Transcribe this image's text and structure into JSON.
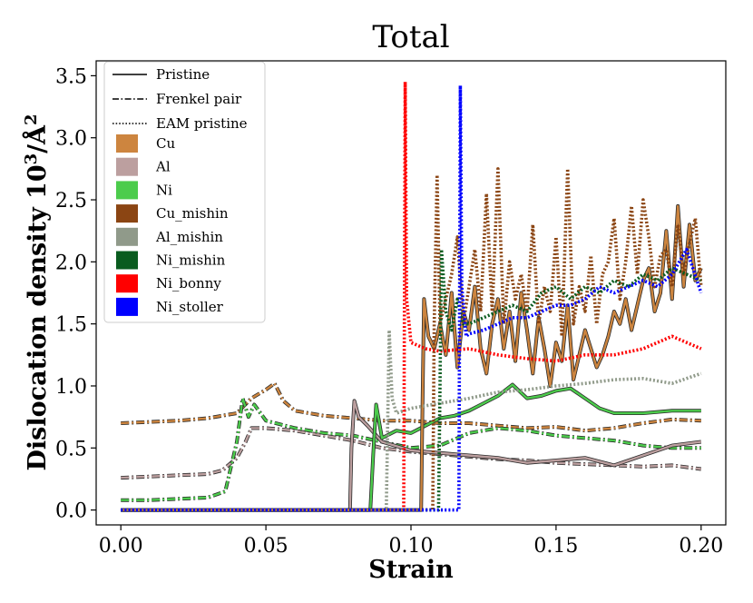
{
  "chart_data": {
    "type": "line",
    "title": "Total",
    "xlabel": "Strain",
    "ylabel": "Dislocation density 10³/Å²",
    "ylabel_main": "Dislocation density 10",
    "ylabel_sup": "3",
    "ylabel_unit": "/Å",
    "ylabel_unit_sup": "2",
    "xlim": [
      -0.0085,
      0.2085
    ],
    "ylim": [
      -0.12,
      3.62
    ],
    "x_ticks": [
      "0.00",
      "0.05",
      "0.10",
      "0.15",
      "0.20"
    ],
    "x_tick_values": [
      0.0,
      0.05,
      0.1,
      0.15,
      0.2
    ],
    "y_ticks": [
      "0.0",
      "0.5",
      "1.0",
      "1.5",
      "2.0",
      "2.5",
      "3.0",
      "3.5"
    ],
    "y_tick_values": [
      0.0,
      0.5,
      1.0,
      1.5,
      2.0,
      2.5,
      3.0,
      3.5
    ],
    "legend_position": "top-left",
    "legend": {
      "line_styles": [
        {
          "label": "Pristine",
          "dash": "solid"
        },
        {
          "label": "Frenkel pair",
          "dash": "dashdot"
        },
        {
          "label": "EAM pristine",
          "dash": "dotted"
        }
      ],
      "materials": [
        {
          "label": "Cu",
          "color": "#cd853f"
        },
        {
          "label": "Al",
          "color": "#bc9f9f"
        },
        {
          "label": "Ni",
          "color": "#4ccc4c"
        },
        {
          "label": "Cu_mishin",
          "color": "#8b4513"
        },
        {
          "label": "Al_mishin",
          "color": "#909a8a"
        },
        {
          "label": "Ni_mishin",
          "color": "#0a5c1f"
        },
        {
          "label": "Ni_bonny",
          "color": "#ff0000"
        },
        {
          "label": "Ni_stoller",
          "color": "#0000ff"
        }
      ]
    },
    "series": [
      {
        "name": "Cu Frenkel pair",
        "color": "#cd853f",
        "dash": "dashdot",
        "outline": true,
        "x": [
          0.0,
          0.01,
          0.02,
          0.03,
          0.04,
          0.045,
          0.05,
          0.053,
          0.056,
          0.06,
          0.07,
          0.08,
          0.09,
          0.1,
          0.11,
          0.12,
          0.13,
          0.14,
          0.15,
          0.16,
          0.17,
          0.18,
          0.19,
          0.2
        ],
        "y": [
          0.7,
          0.71,
          0.72,
          0.74,
          0.78,
          0.9,
          0.97,
          1.02,
          0.88,
          0.8,
          0.76,
          0.74,
          0.72,
          0.72,
          0.7,
          0.7,
          0.68,
          0.66,
          0.67,
          0.64,
          0.66,
          0.7,
          0.73,
          0.72
        ]
      },
      {
        "name": "Al Frenkel pair",
        "color": "#bc9f9f",
        "dash": "dashdot",
        "outline": true,
        "x": [
          0.0,
          0.01,
          0.02,
          0.03,
          0.035,
          0.04,
          0.043,
          0.045,
          0.05,
          0.06,
          0.07,
          0.08,
          0.09,
          0.1,
          0.11,
          0.12,
          0.13,
          0.14,
          0.15,
          0.16,
          0.17,
          0.18,
          0.19,
          0.2
        ],
        "y": [
          0.26,
          0.27,
          0.28,
          0.29,
          0.32,
          0.42,
          0.55,
          0.66,
          0.66,
          0.64,
          0.6,
          0.56,
          0.5,
          0.47,
          0.45,
          0.43,
          0.41,
          0.4,
          0.38,
          0.37,
          0.36,
          0.35,
          0.36,
          0.33
        ]
      },
      {
        "name": "Ni Frenkel pair",
        "color": "#4ccc4c",
        "dash": "dashdot",
        "outline": true,
        "x": [
          0.0,
          0.01,
          0.02,
          0.03,
          0.036,
          0.04,
          0.042,
          0.044,
          0.046,
          0.05,
          0.06,
          0.07,
          0.08,
          0.09,
          0.1,
          0.11,
          0.12,
          0.13,
          0.14,
          0.15,
          0.16,
          0.17,
          0.18,
          0.19,
          0.2
        ],
        "y": [
          0.08,
          0.08,
          0.09,
          0.1,
          0.15,
          0.55,
          0.9,
          0.75,
          0.85,
          0.72,
          0.66,
          0.62,
          0.6,
          0.55,
          0.5,
          0.52,
          0.62,
          0.66,
          0.64,
          0.6,
          0.58,
          0.56,
          0.52,
          0.5,
          0.5
        ]
      },
      {
        "name": "Al Pristine",
        "color": "#bc9f9f",
        "dash": "solid",
        "outline": true,
        "x": [
          0.0,
          0.079,
          0.0795,
          0.0805,
          0.082,
          0.085,
          0.09,
          0.1,
          0.11,
          0.12,
          0.13,
          0.14,
          0.15,
          0.16,
          0.17,
          0.18,
          0.19,
          0.2
        ],
        "y": [
          0.0,
          0.0,
          0.5,
          0.88,
          0.75,
          0.68,
          0.55,
          0.48,
          0.46,
          0.44,
          0.42,
          0.38,
          0.4,
          0.42,
          0.36,
          0.44,
          0.52,
          0.55
        ]
      },
      {
        "name": "Ni Pristine",
        "color": "#4ccc4c",
        "dash": "solid",
        "outline": true,
        "x": [
          0.0,
          0.086,
          0.087,
          0.088,
          0.09,
          0.095,
          0.1,
          0.105,
          0.11,
          0.115,
          0.12,
          0.125,
          0.13,
          0.135,
          0.14,
          0.145,
          0.15,
          0.155,
          0.16,
          0.165,
          0.17,
          0.18,
          0.19,
          0.2
        ],
        "y": [
          0.0,
          0.0,
          0.45,
          0.85,
          0.58,
          0.64,
          0.62,
          0.68,
          0.74,
          0.76,
          0.8,
          0.86,
          0.92,
          1.01,
          0.9,
          0.92,
          0.96,
          0.98,
          0.9,
          0.82,
          0.78,
          0.78,
          0.8,
          0.8
        ]
      },
      {
        "name": "Cu Pristine",
        "color": "#cd853f",
        "dash": "solid",
        "outline": true,
        "x": [
          0.0,
          0.1035,
          0.104,
          0.1045,
          0.106,
          0.108,
          0.11,
          0.112,
          0.114,
          0.116,
          0.118,
          0.12,
          0.122,
          0.124,
          0.126,
          0.128,
          0.13,
          0.132,
          0.134,
          0.136,
          0.138,
          0.14,
          0.142,
          0.144,
          0.146,
          0.148,
          0.15,
          0.152,
          0.154,
          0.156,
          0.158,
          0.16,
          0.162,
          0.164,
          0.166,
          0.168,
          0.17,
          0.172,
          0.174,
          0.176,
          0.178,
          0.18,
          0.182,
          0.184,
          0.186,
          0.188,
          0.19,
          0.192,
          0.194,
          0.196,
          0.198,
          0.2
        ],
        "y": [
          0.0,
          0.0,
          0.9,
          1.7,
          1.4,
          1.3,
          1.5,
          1.25,
          1.75,
          1.15,
          1.6,
          1.45,
          1.8,
          1.3,
          1.1,
          1.5,
          1.7,
          1.3,
          1.6,
          1.2,
          1.75,
          1.45,
          1.1,
          1.55,
          1.3,
          1.0,
          1.35,
          1.2,
          1.65,
          1.05,
          1.25,
          1.45,
          1.3,
          1.15,
          1.25,
          1.4,
          1.6,
          1.5,
          1.7,
          1.45,
          1.65,
          1.85,
          1.95,
          1.6,
          1.75,
          2.25,
          1.7,
          2.45,
          1.8,
          2.3,
          1.85,
          1.95
        ]
      },
      {
        "name": "Al_mishin EAM pristine",
        "color": "#909a8a",
        "dash": "dotted",
        "x": [
          0.0,
          0.0915,
          0.0925,
          0.0935,
          0.095,
          0.1,
          0.11,
          0.12,
          0.13,
          0.14,
          0.15,
          0.16,
          0.17,
          0.18,
          0.19,
          0.2
        ],
        "y": [
          0.0,
          0.0,
          1.45,
          0.9,
          0.78,
          0.82,
          0.86,
          0.9,
          0.95,
          0.97,
          1.0,
          1.02,
          1.05,
          1.06,
          1.02,
          1.1
        ]
      },
      {
        "name": "Ni_bonny EAM pristine",
        "color": "#ff0000",
        "dash": "dotted",
        "x": [
          0.0,
          0.0975,
          0.098,
          0.0985,
          0.1,
          0.105,
          0.11,
          0.12,
          0.13,
          0.14,
          0.15,
          0.16,
          0.17,
          0.18,
          0.19,
          0.2
        ],
        "y": [
          0.0,
          0.0,
          3.45,
          1.7,
          1.35,
          1.3,
          1.28,
          1.3,
          1.25,
          1.22,
          1.2,
          1.25,
          1.25,
          1.3,
          1.4,
          1.3
        ]
      },
      {
        "name": "Cu_mishin EAM pristine",
        "color": "#8b4513",
        "dash": "dotted",
        "x": [
          0.0,
          0.1075,
          0.108,
          0.109,
          0.11,
          0.112,
          0.114,
          0.116,
          0.118,
          0.12,
          0.122,
          0.124,
          0.126,
          0.128,
          0.13,
          0.132,
          0.134,
          0.136,
          0.138,
          0.14,
          0.142,
          0.144,
          0.146,
          0.148,
          0.15,
          0.152,
          0.154,
          0.156,
          0.158,
          0.16,
          0.162,
          0.164,
          0.166,
          0.168,
          0.17,
          0.172,
          0.174,
          0.176,
          0.178,
          0.18,
          0.182,
          0.184,
          0.186,
          0.188,
          0.19,
          0.192,
          0.194,
          0.196,
          0.198,
          0.2
        ],
        "y": [
          0.0,
          0.0,
          1.5,
          2.7,
          1.5,
          1.7,
          1.9,
          2.2,
          1.5,
          1.8,
          2.1,
          1.6,
          2.55,
          1.6,
          2.75,
          1.5,
          2.0,
          1.7,
          1.9,
          1.6,
          2.3,
          1.5,
          1.8,
          1.6,
          2.2,
          1.4,
          2.75,
          1.5,
          1.8,
          1.6,
          2.05,
          1.5,
          1.9,
          2.0,
          2.35,
          1.7,
          2.0,
          2.45,
          1.9,
          2.5,
          2.2,
          1.8,
          2.05,
          2.1,
          1.8,
          2.3,
          1.9,
          2.15,
          2.35,
          1.8
        ]
      },
      {
        "name": "Ni_mishin EAM pristine",
        "color": "#0a5c1f",
        "dash": "dotted",
        "x": [
          0.0,
          0.1095,
          0.11,
          0.1105,
          0.112,
          0.114,
          0.116,
          0.118,
          0.12,
          0.125,
          0.13,
          0.135,
          0.14,
          0.145,
          0.15,
          0.155,
          0.16,
          0.165,
          0.17,
          0.175,
          0.18,
          0.185,
          0.19,
          0.195,
          0.2
        ],
        "y": [
          0.0,
          0.0,
          1.0,
          2.1,
          1.6,
          1.45,
          1.7,
          1.5,
          1.5,
          1.55,
          1.6,
          1.65,
          1.6,
          1.75,
          1.8,
          1.7,
          1.8,
          1.75,
          1.85,
          1.8,
          1.9,
          1.85,
          1.95,
          1.9,
          1.85
        ]
      },
      {
        "name": "Ni_stoller EAM pristine",
        "color": "#0000ff",
        "dash": "dotted",
        "x": [
          0.0,
          0.1165,
          0.117,
          0.1175,
          0.119,
          0.12,
          0.125,
          0.13,
          0.135,
          0.14,
          0.145,
          0.15,
          0.155,
          0.16,
          0.165,
          0.17,
          0.175,
          0.18,
          0.185,
          0.19,
          0.195,
          0.2
        ],
        "y": [
          0.0,
          0.0,
          3.42,
          1.8,
          1.4,
          1.42,
          1.45,
          1.5,
          1.55,
          1.55,
          1.6,
          1.65,
          1.65,
          1.7,
          1.8,
          1.75,
          1.8,
          1.85,
          1.8,
          1.9,
          2.1,
          1.75
        ]
      }
    ]
  }
}
